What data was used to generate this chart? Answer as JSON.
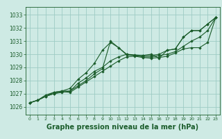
{
  "bg_color": "#ceeae4",
  "grid_color": "#9dccc4",
  "line_color": "#1a5c2a",
  "marker_color": "#1a5c2a",
  "xlabel": "Graphe pression niveau de la mer (hPa)",
  "xlabel_fontsize": 7,
  "xlabel_color": "#1a5c2a",
  "ylabel_ticks": [
    1026,
    1027,
    1028,
    1029,
    1030,
    1031,
    1032,
    1033
  ],
  "xlim": [
    -0.5,
    23.5
  ],
  "ylim": [
    1025.4,
    1033.6
  ],
  "xticks": [
    0,
    1,
    2,
    3,
    4,
    5,
    6,
    7,
    8,
    9,
    10,
    11,
    12,
    13,
    14,
    15,
    16,
    17,
    18,
    19,
    20,
    21,
    22,
    23
  ],
  "series": [
    [
      1026.3,
      1026.5,
      1026.9,
      1027.1,
      1027.2,
      1027.4,
      1028.1,
      1028.6,
      1029.3,
      1030.3,
      1030.9,
      1030.5,
      1030.0,
      1029.9,
      1029.9,
      1030.0,
      1029.7,
      1030.3,
      1030.4,
      1031.3,
      1031.8,
      1031.8,
      1032.3,
      1032.8
    ],
    [
      1026.3,
      1026.5,
      1026.8,
      1027.1,
      1027.2,
      1027.2,
      1027.8,
      1028.2,
      1028.7,
      1029.0,
      1029.5,
      1029.8,
      1030.0,
      1029.95,
      1029.9,
      1029.9,
      1030.0,
      1030.3,
      1030.4,
      1031.3,
      1031.8,
      1031.8,
      1032.3,
      1032.8
    ],
    [
      1026.3,
      1026.5,
      1026.8,
      1027.0,
      1027.1,
      1027.2,
      1027.6,
      1028.0,
      1028.5,
      1028.9,
      1031.0,
      1030.5,
      1029.95,
      1029.9,
      1029.8,
      1029.8,
      1029.9,
      1030.0,
      1030.2,
      1030.6,
      1031.0,
      1031.3,
      1031.8,
      1032.8
    ],
    [
      1026.3,
      1026.5,
      1026.8,
      1027.0,
      1027.15,
      1027.1,
      1027.5,
      1027.9,
      1028.3,
      1028.7,
      1029.1,
      1029.5,
      1029.8,
      1029.85,
      1029.75,
      1029.7,
      1029.75,
      1029.85,
      1030.1,
      1030.4,
      1030.5,
      1030.5,
      1030.9,
      1032.8
    ]
  ]
}
